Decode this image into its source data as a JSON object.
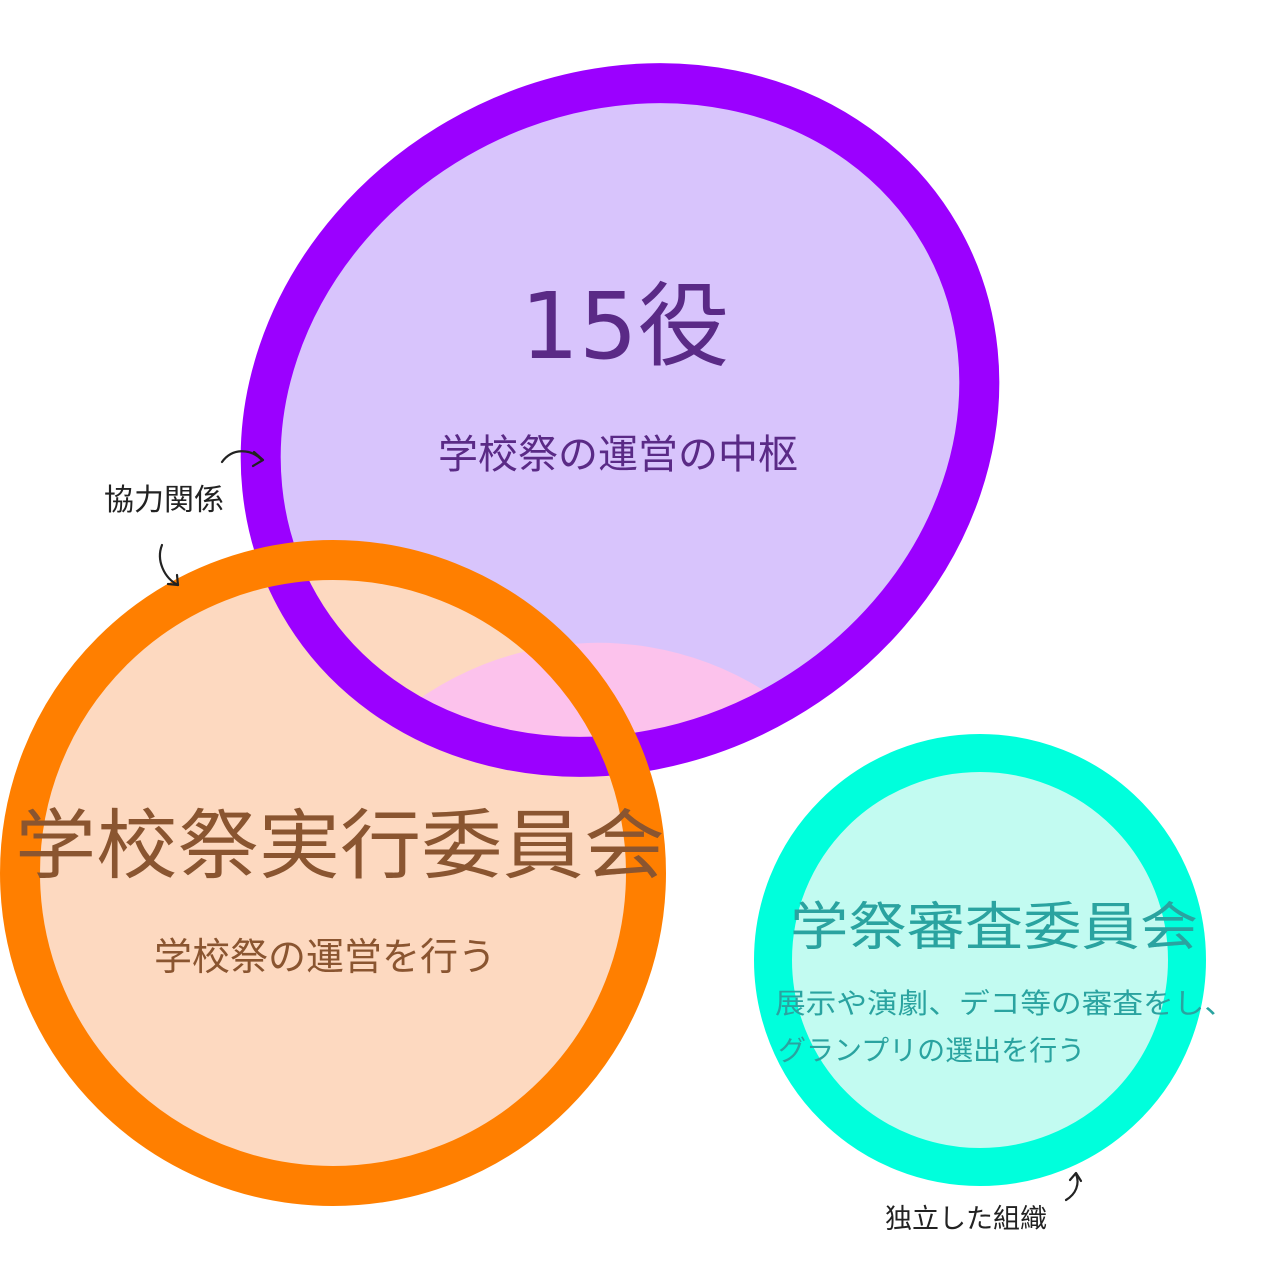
{
  "diagram": {
    "top_group": {
      "title": "15役",
      "subtitle": "学校祭の運営の中枢",
      "fill_color": "#d8c4fc",
      "ring_color": "#9b00ff",
      "text_color": "#5a2a86"
    },
    "left_group": {
      "title": "学校祭実行委員会",
      "subtitle": "学校祭の運営を行う",
      "fill_color": "#fdd9c0",
      "ring_color": "#ff7f00",
      "text_color": "#8a5530"
    },
    "right_group": {
      "title": "学祭審査委員会",
      "subtitle_line1": "展示や演劇、デコ等の審査をし、",
      "subtitle_line2": "グランプリの選出を行う",
      "fill_color": "#c2fbf1",
      "ring_color": "#00ffdc",
      "text_color": "#2aa3a0"
    },
    "overlap_color": "#fcc2ec",
    "relation_label": "協力関係",
    "independent_label": "独立した組織"
  }
}
